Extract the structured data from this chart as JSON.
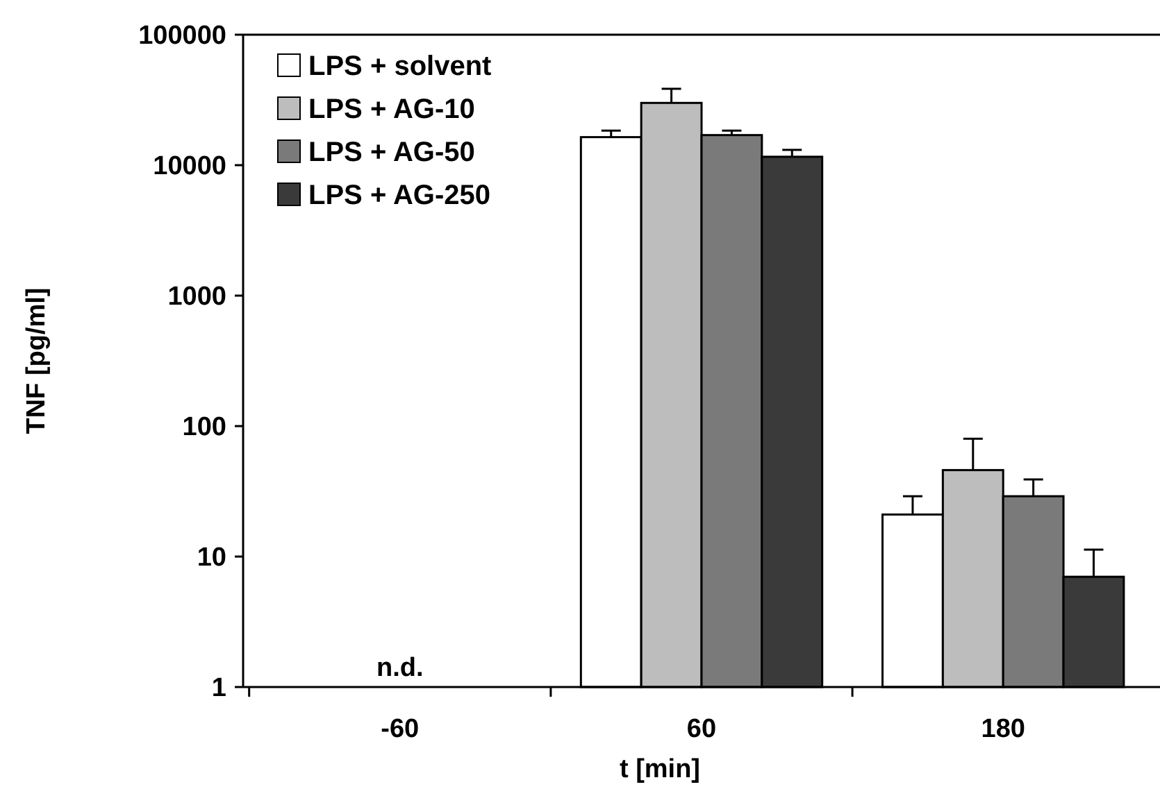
{
  "chart_data": {
    "type": "bar",
    "xlabel": "t [min]",
    "ylabel": "TNF [pg/ml]",
    "categories": [
      "-60",
      "60",
      "180"
    ],
    "series": [
      {
        "name": "LPS + solvent",
        "color": "#ffffff",
        "values": [
          null,
          16400,
          21
        ],
        "errors": [
          null,
          [
            16400,
            18400
          ],
          [
            21,
            29
          ]
        ]
      },
      {
        "name": "LPS + AG-10",
        "color": "#bdbdbd",
        "values": [
          null,
          30000,
          46
        ],
        "errors": [
          null,
          [
            30000,
            38500
          ],
          [
            46,
            80
          ]
        ]
      },
      {
        "name": "LPS + AG-50",
        "color": "#7a7a7a",
        "values": [
          null,
          17000,
          29
        ],
        "errors": [
          null,
          [
            17000,
            18400
          ],
          [
            29,
            39
          ]
        ]
      },
      {
        "name": "LPS + AG-250",
        "color": "#3a3a3a",
        "values": [
          null,
          11600,
          7
        ],
        "errors": [
          null,
          [
            11600,
            13100
          ],
          [
            7,
            11.3
          ]
        ]
      }
    ],
    "log": true,
    "ylim": [
      1,
      100000
    ],
    "yticks": [
      1,
      10,
      100,
      1000,
      10000,
      100000
    ],
    "legend": "top left",
    "annotations": [
      "n.d."
    ]
  }
}
